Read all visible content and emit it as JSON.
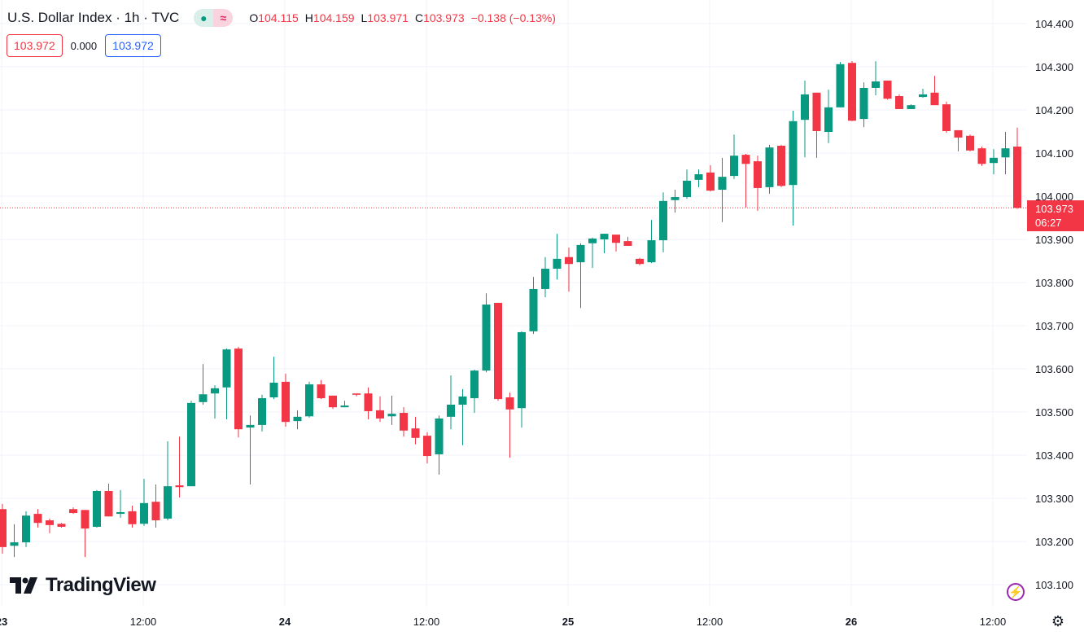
{
  "header": {
    "title": "U.S. Dollar Index · 1h · TVC",
    "ohlc": {
      "o_label": "O",
      "o": "104.115",
      "h_label": "H",
      "h": "104.159",
      "l_label": "L",
      "l": "103.971",
      "c_label": "C",
      "c": "103.973",
      "change": "−0.138 (−0.13%)"
    },
    "sell_price": "103.972",
    "spread": "0.000",
    "buy_price": "103.972"
  },
  "logo_text": "TradingView",
  "current_price": {
    "value": "103.973",
    "countdown": "06:27"
  },
  "colors": {
    "up": "#089981",
    "down": "#f23645",
    "grid": "#f0f3fa",
    "text": "#131722"
  },
  "chart_data": {
    "type": "candlestick",
    "title": "U.S. Dollar Index · 1h · TVC",
    "interval": "1h",
    "x_tick_labels": [
      "23",
      "12:00",
      "24",
      "12:00",
      "25",
      "12:00",
      "26",
      "12:00"
    ],
    "y_tick_labels": [
      "104.400",
      "104.300",
      "104.200",
      "104.100",
      "104.000",
      "103.900",
      "103.800",
      "103.700",
      "103.600",
      "103.500",
      "103.400",
      "103.300",
      "103.200",
      "103.100"
    ],
    "ylim": [
      103.1,
      104.4
    ],
    "grid": true,
    "current_price": 103.973,
    "candles_ohlc": [
      [
        103.275,
        103.287,
        103.172,
        103.187
      ],
      [
        103.19,
        103.24,
        103.164,
        103.198
      ],
      [
        103.198,
        103.27,
        103.187,
        103.26
      ],
      [
        103.264,
        103.275,
        103.232,
        103.243
      ],
      [
        103.249,
        103.253,
        103.219,
        103.238
      ],
      [
        103.241,
        103.243,
        103.232,
        103.234
      ],
      [
        103.275,
        103.279,
        103.264,
        103.266
      ],
      [
        103.273,
        103.273,
        103.164,
        103.23
      ],
      [
        103.234,
        103.319,
        103.232,
        103.317
      ],
      [
        103.317,
        103.334,
        103.258,
        103.258
      ],
      [
        103.264,
        103.319,
        103.255,
        103.268
      ],
      [
        103.27,
        103.283,
        103.232,
        103.24
      ],
      [
        103.241,
        103.345,
        103.236,
        103.289
      ],
      [
        103.292,
        103.332,
        103.232,
        103.249
      ],
      [
        103.253,
        103.432,
        103.249,
        103.328
      ],
      [
        103.33,
        103.443,
        103.302,
        103.326
      ],
      [
        103.328,
        103.526,
        103.328,
        103.521
      ],
      [
        103.523,
        103.611,
        103.517,
        103.541
      ],
      [
        103.543,
        103.562,
        103.485,
        103.555
      ],
      [
        103.557,
        103.647,
        103.483,
        103.645
      ],
      [
        103.647,
        103.651,
        103.441,
        103.46
      ],
      [
        103.464,
        103.492,
        103.332,
        103.47
      ],
      [
        103.47,
        103.54,
        103.455,
        103.532
      ],
      [
        103.534,
        103.628,
        103.53,
        103.568
      ],
      [
        103.57,
        103.589,
        103.466,
        103.477
      ],
      [
        103.479,
        103.504,
        103.46,
        103.489
      ],
      [
        103.49,
        103.57,
        103.487,
        103.564
      ],
      [
        103.564,
        103.574,
        103.53,
        103.532
      ],
      [
        103.538,
        103.538,
        103.507,
        103.511
      ],
      [
        103.511,
        103.526,
        103.511,
        103.515
      ],
      [
        103.543,
        103.543,
        103.536,
        103.54
      ],
      [
        103.543,
        103.557,
        103.483,
        103.502
      ],
      [
        103.504,
        103.536,
        103.477,
        103.485
      ],
      [
        103.49,
        103.538,
        103.47,
        103.496
      ],
      [
        103.498,
        103.511,
        103.443,
        103.457
      ],
      [
        103.462,
        103.489,
        103.425,
        103.44
      ],
      [
        103.445,
        103.453,
        103.381,
        103.398
      ],
      [
        103.402,
        103.492,
        103.355,
        103.485
      ],
      [
        103.489,
        103.585,
        103.46,
        103.517
      ],
      [
        103.517,
        103.553,
        103.423,
        103.536
      ],
      [
        103.532,
        103.598,
        103.498,
        103.596
      ],
      [
        103.596,
        103.775,
        103.592,
        103.749
      ],
      [
        103.753,
        103.753,
        103.526,
        103.53
      ],
      [
        103.534,
        103.545,
        103.394,
        103.506
      ],
      [
        103.509,
        103.687,
        103.464,
        103.685
      ],
      [
        103.687,
        103.813,
        103.681,
        103.785
      ],
      [
        103.785,
        103.859,
        103.766,
        103.832
      ],
      [
        103.832,
        103.913,
        103.807,
        103.855
      ],
      [
        103.859,
        103.881,
        103.779,
        103.843
      ],
      [
        103.847,
        103.891,
        103.741,
        103.887
      ],
      [
        103.891,
        103.904,
        103.834,
        103.902
      ],
      [
        103.9,
        103.913,
        103.868,
        103.913
      ],
      [
        103.911,
        103.911,
        103.872,
        103.892
      ],
      [
        103.896,
        103.906,
        103.885,
        103.885
      ],
      [
        103.855,
        103.857,
        103.84,
        103.843
      ],
      [
        103.847,
        103.945,
        103.845,
        103.898
      ],
      [
        103.898,
        104.009,
        103.87,
        103.989
      ],
      [
        103.991,
        104.015,
        103.962,
        103.998
      ],
      [
        103.998,
        104.062,
        103.994,
        104.036
      ],
      [
        104.038,
        104.062,
        104.021,
        104.051
      ],
      [
        104.055,
        104.072,
        104.011,
        104.013
      ],
      [
        104.015,
        104.089,
        103.94,
        104.045
      ],
      [
        104.047,
        104.143,
        104.04,
        104.094
      ],
      [
        104.096,
        104.098,
        103.974,
        104.075
      ],
      [
        104.081,
        104.094,
        103.966,
        104.019
      ],
      [
        104.021,
        104.119,
        104.006,
        104.113
      ],
      [
        104.117,
        104.119,
        104.021,
        104.024
      ],
      [
        104.026,
        104.198,
        103.932,
        104.174
      ],
      [
        104.177,
        104.268,
        104.09,
        104.236
      ],
      [
        104.24,
        104.24,
        104.089,
        104.151
      ],
      [
        104.149,
        104.247,
        104.123,
        104.206
      ],
      [
        104.206,
        104.311,
        104.206,
        104.306
      ],
      [
        104.309,
        104.313,
        104.174,
        104.175
      ],
      [
        104.179,
        104.264,
        104.16,
        104.251
      ],
      [
        104.251,
        104.313,
        104.234,
        104.266
      ],
      [
        104.268,
        104.268,
        104.224,
        104.226
      ],
      [
        104.232,
        104.236,
        104.202,
        104.202
      ],
      [
        104.202,
        104.213,
        104.202,
        104.211
      ],
      [
        104.23,
        104.249,
        104.228,
        104.236
      ],
      [
        104.24,
        104.279,
        104.211,
        104.211
      ],
      [
        104.213,
        104.219,
        104.147,
        104.151
      ],
      [
        104.153,
        104.153,
        104.104,
        104.136
      ],
      [
        104.14,
        104.143,
        104.104,
        104.106
      ],
      [
        104.111,
        104.115,
        104.07,
        104.075
      ],
      [
        104.077,
        104.109,
        104.051,
        104.089
      ],
      [
        104.09,
        104.149,
        104.051,
        104.111
      ],
      [
        104.115,
        104.159,
        103.971,
        103.973
      ]
    ]
  }
}
